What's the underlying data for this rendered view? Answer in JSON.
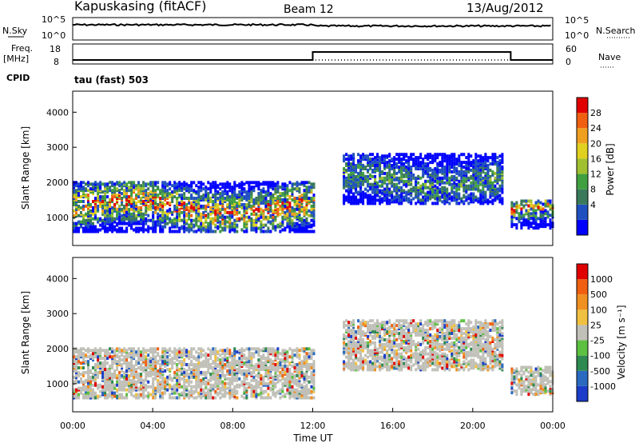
{
  "header": {
    "station": "Kapuskasing (fitACF)",
    "beam": "Beam 12",
    "date": "13/Aug/2012"
  },
  "strip_top": {
    "left_label": "N.Sky",
    "right_label": "N.Search",
    "left_ticks": [
      "10^5",
      "10^0"
    ],
    "right_ticks": [
      "10^5",
      "10^0"
    ]
  },
  "strip_mid": {
    "left_label_1": "Freq.",
    "left_label_2": "[MHz]",
    "right_label": "Nave",
    "left_ticks": [
      "18",
      "8"
    ],
    "right_ticks": [
      "60",
      "0"
    ]
  },
  "cpid": {
    "label": "CPID",
    "mode": "tau (fast) 503"
  },
  "power_panel": {
    "ylabel": "Slant Range [km]",
    "yticks": [
      "4000",
      "3000",
      "2000",
      "1000"
    ],
    "colorbar_label": "Power [dB]",
    "colorbar_ticks": [
      "28",
      "24",
      "20",
      "16",
      "12",
      "8",
      "4"
    ],
    "colors": [
      "#0000ff",
      "#2050c0",
      "#3a7a5a",
      "#40a040",
      "#a0c030",
      "#e0d020",
      "#f0a020",
      "#f06010",
      "#e00000"
    ]
  },
  "velocity_panel": {
    "ylabel": "Slant Range [km]",
    "yticks": [
      "4000",
      "3000",
      "2000",
      "1000"
    ],
    "colorbar_label": "Velocity [m s⁻¹]",
    "colorbar_ticks": [
      "1000",
      "500",
      "100",
      "25",
      "-25",
      "-100",
      "-500",
      "-1000"
    ],
    "colors": [
      "#1a3cc8",
      "#2a6ac0",
      "#2e8a50",
      "#5cc040",
      "#c0c0b8",
      "#f0c040",
      "#f09020",
      "#f06010",
      "#e00000"
    ],
    "ground_scatter_color": "#c0c0b8"
  },
  "x_axis": {
    "label": "Time UT",
    "ticks": [
      "00:00",
      "04:00",
      "08:00",
      "12:00",
      "16:00",
      "20:00",
      "00:00"
    ]
  },
  "chart_data": {
    "type": "heatmap",
    "title": "Kapuskasing (fitACF)",
    "subtitle": "Beam 12 13/Aug/2012",
    "xlabel": "Time UT",
    "ylabel": "Slant Range [km]",
    "x_range_hours": [
      0,
      24
    ],
    "y_range_km": [
      200,
      4600
    ],
    "scatter_regions": [
      {
        "start_h": 0.0,
        "end_h": 12.0,
        "range_low_km": 600,
        "range_high_km": 2000,
        "power_db_peak": 28
      },
      {
        "start_h": 21.9,
        "end_h": 24.0,
        "range_low_km": 700,
        "range_high_km": 1500,
        "power_db_peak": 24
      },
      {
        "start_h": 13.5,
        "end_h": 21.5,
        "range_low_km": 1400,
        "range_high_km": 2800,
        "power_db_peak": 12
      }
    ],
    "freq_mhz": {
      "segments": [
        {
          "start_h": 0,
          "end_h": 12,
          "value": 10
        },
        {
          "start_h": 12,
          "end_h": 21.9,
          "value": 14
        },
        {
          "start_h": 21.9,
          "end_h": 24,
          "value": 10
        }
      ]
    },
    "nave": {
      "value": 10
    },
    "noise_sky": {
      "level": "10^4"
    },
    "noise_search": {
      "level": "10^4"
    }
  }
}
